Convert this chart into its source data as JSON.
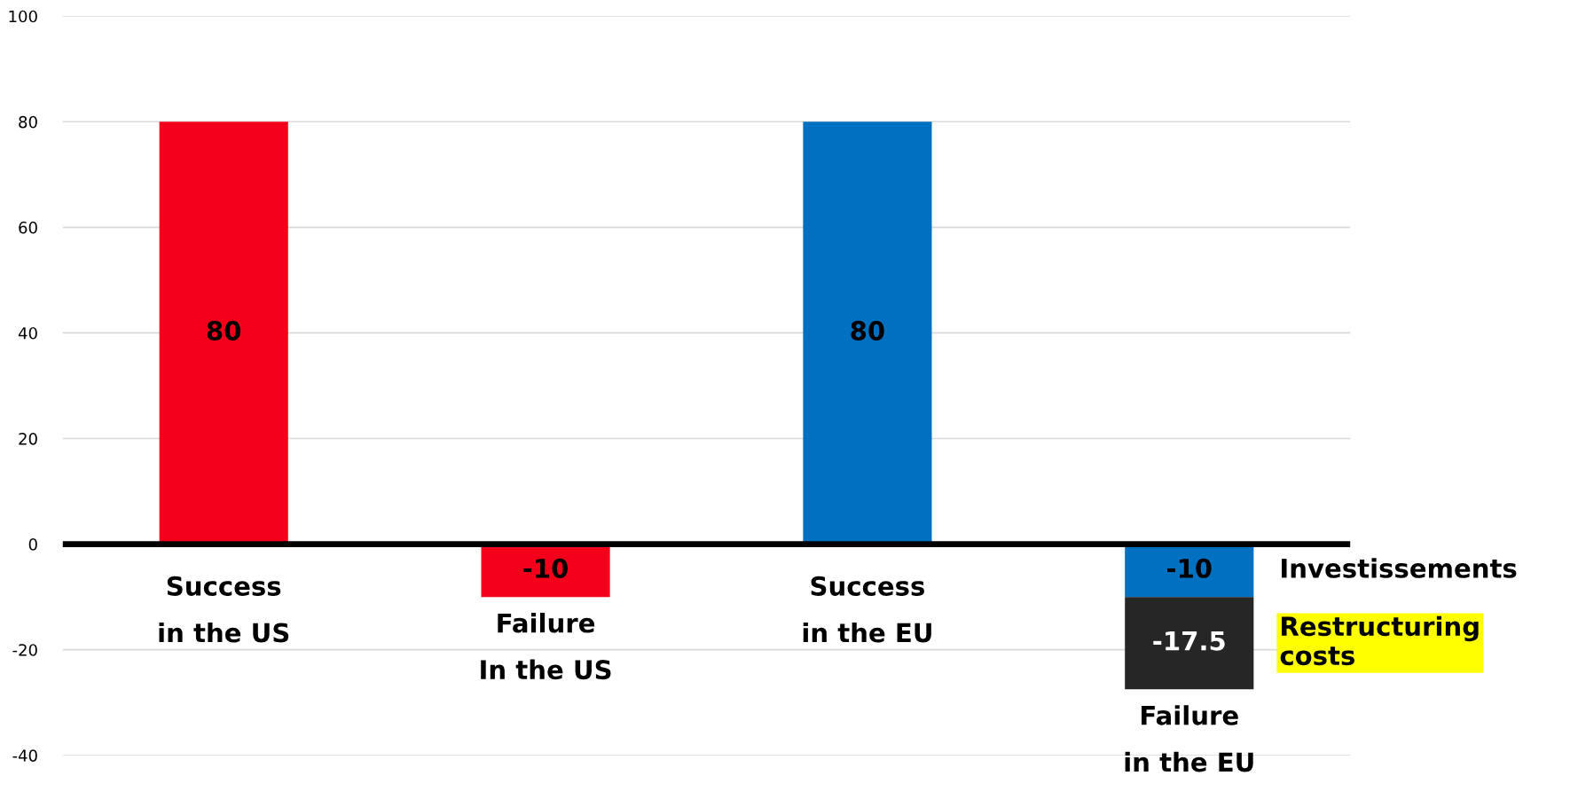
{
  "chart_data": {
    "type": "bar",
    "stacked": true,
    "categories": [
      "Success\nin the US",
      "Failure\nIn the US",
      "Success\nin the EU",
      "Failure\nin the EU"
    ],
    "series": [
      {
        "name": "Investissements",
        "colors": [
          "#f5001a",
          "#f5001a",
          "#0070c0",
          "#0070c0"
        ],
        "values": [
          80,
          -10,
          80,
          -10
        ]
      },
      {
        "name": "Restructuring costs",
        "color": "#262626",
        "values": [
          null,
          null,
          null,
          -17.5
        ]
      }
    ],
    "ylim": [
      -40,
      100
    ],
    "yticks": [
      -40,
      -20,
      0,
      20,
      40,
      60,
      80,
      100
    ],
    "grid": "y",
    "data_labels": true
  }
}
